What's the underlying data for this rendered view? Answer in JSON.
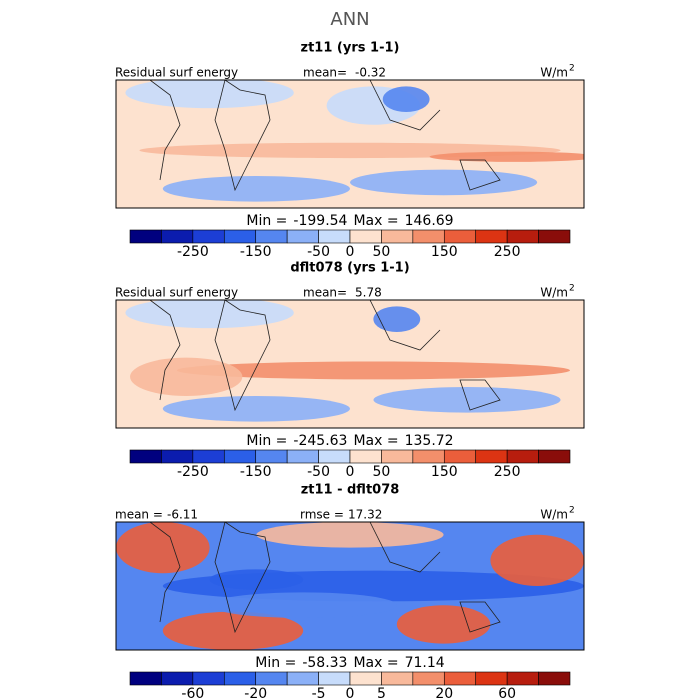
{
  "title": "ANN",
  "panels": [
    {
      "title": "zt11 (yrs 1-1)",
      "left_label": "Residual surf energy",
      "mean_label": "mean=",
      "mean": -0.32,
      "units": "W/m",
      "units_sup": "2",
      "min_label": "Min =",
      "min": -199.54,
      "max_label": "Max =",
      "max": 146.69,
      "colorbar": {
        "colors": [
          "#00007f",
          "#0b1cae",
          "#1c3ed5",
          "#2b5fe8",
          "#5586f0",
          "#8bb0f7",
          "#c7dcfb",
          "#fde2cf",
          "#f8b99b",
          "#f38f6b",
          "#eb5e3b",
          "#dc3413",
          "#b71d0e",
          "#8a0d0a"
        ],
        "ticks": [
          -250,
          -150,
          -50,
          0,
          50,
          150,
          250
        ]
      }
    },
    {
      "title": "dflt078 (yrs 1-1)",
      "left_label": "Residual surf energy",
      "mean_label": "mean=",
      "mean": 5.78,
      "units": "W/m",
      "units_sup": "2",
      "min_label": "Min =",
      "min": -245.63,
      "max_label": "Max =",
      "max": 135.72,
      "colorbar": {
        "colors": [
          "#00007f",
          "#0b1cae",
          "#1c3ed5",
          "#2b5fe8",
          "#5586f0",
          "#8bb0f7",
          "#c7dcfb",
          "#fde2cf",
          "#f8b99b",
          "#f38f6b",
          "#eb5e3b",
          "#dc3413",
          "#b71d0e",
          "#8a0d0a"
        ],
        "ticks": [
          -250,
          -150,
          -50,
          0,
          50,
          150,
          250
        ]
      }
    },
    {
      "title": "zt11 - dflt078",
      "mean_label": "mean =",
      "mean": -6.11,
      "rmse_label": "rmse =",
      "rmse": 17.32,
      "units": "W/m",
      "units_sup": "2",
      "min_label": "Min =",
      "min": -58.33,
      "max_label": "Max =",
      "max": 71.14,
      "colorbar": {
        "colors": [
          "#00007f",
          "#0b1cae",
          "#1c3ed5",
          "#2b5fe8",
          "#5586f0",
          "#8bb0f7",
          "#c7dcfb",
          "#fde2cf",
          "#f8b99b",
          "#f38f6b",
          "#eb5e3b",
          "#dc3413",
          "#b71d0e",
          "#8a0d0a"
        ],
        "ticks": [
          -60,
          -20,
          -5,
          0,
          5,
          20,
          60
        ]
      }
    }
  ]
}
